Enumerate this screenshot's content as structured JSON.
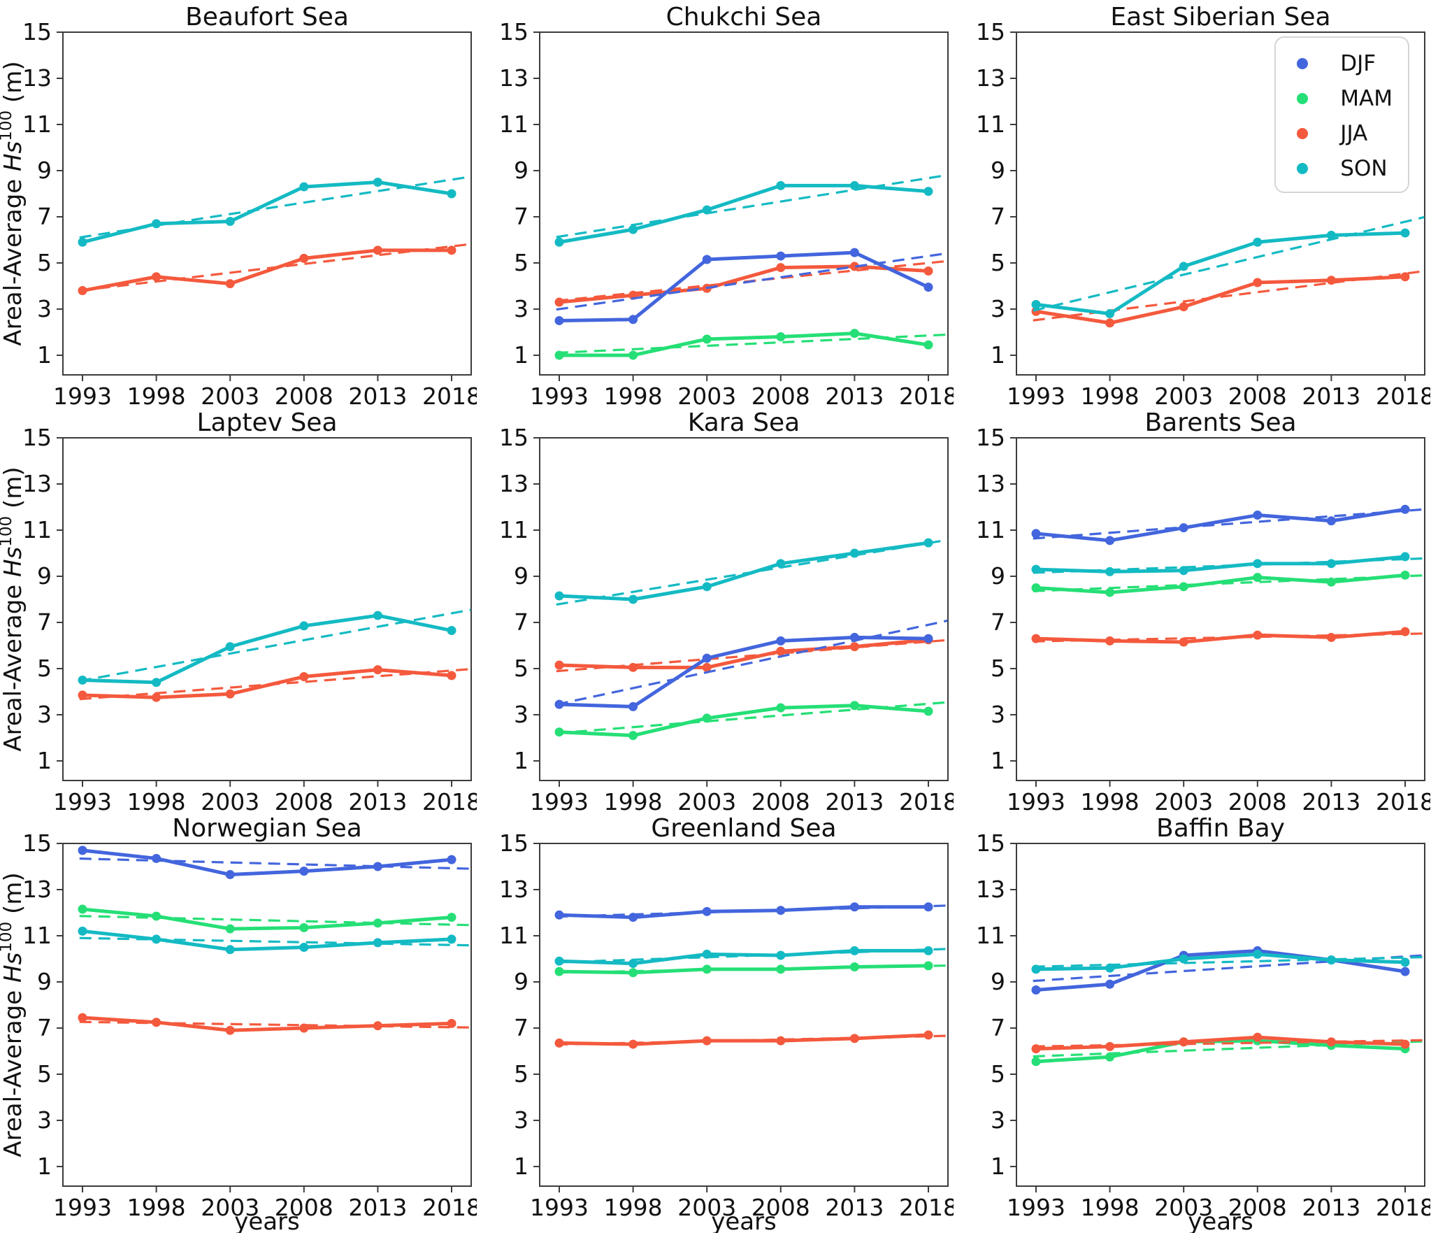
{
  "figure": {
    "ylabel": {
      "prefix": "Areal-Average ",
      "var": "Hs",
      "sup": "100",
      "suffix": " (m)"
    },
    "xlabel": "years"
  },
  "colors": {
    "DJF": "#4365dd",
    "MAM": "#25df76",
    "JJA": "#f4593d",
    "SON": "#14bac3",
    "axis": "#3c3c3c",
    "text": "#111111",
    "legend_border": "#d5d5d5"
  },
  "legend": {
    "position": "top-right of East Siberian Sea panel",
    "items": [
      {
        "key": "DJF",
        "label": "DJF"
      },
      {
        "key": "MAM",
        "label": "MAM"
      },
      {
        "key": "JJA",
        "label": "JJA"
      },
      {
        "key": "SON",
        "label": "SON"
      }
    ]
  },
  "axes": {
    "x_ticks": [
      1993,
      1998,
      2003,
      2008,
      2013,
      2018
    ],
    "y_ticks": [
      1,
      3,
      5,
      7,
      9,
      11,
      13,
      15
    ],
    "xlim": [
      1991.6,
      2019.4
    ],
    "ylim": [
      0.15,
      15
    ],
    "grid": false,
    "trend_style": "dashed straight line = linear fit of the six points, drawn 1993-2019"
  },
  "chart_data": [
    {
      "type": "line",
      "title": "Beaufort Sea",
      "x": [
        1993,
        1998,
        2003,
        2008,
        2013,
        2018
      ],
      "series": [
        {
          "name": "JJA",
          "values": [
            3.8,
            4.4,
            4.1,
            5.2,
            5.55,
            5.55
          ]
        },
        {
          "name": "SON",
          "values": [
            5.9,
            6.7,
            6.8,
            8.3,
            8.5,
            8.0
          ]
        }
      ]
    },
    {
      "type": "line",
      "title": "Chukchi Sea",
      "x": [
        1993,
        1998,
        2003,
        2008,
        2013,
        2018
      ],
      "series": [
        {
          "name": "MAM",
          "values": [
            1.0,
            1.0,
            1.7,
            1.8,
            1.95,
            1.45
          ]
        },
        {
          "name": "JJA",
          "values": [
            3.3,
            3.6,
            3.9,
            4.8,
            4.85,
            4.65
          ]
        },
        {
          "name": "DJF",
          "values": [
            2.5,
            2.55,
            5.15,
            5.3,
            5.45,
            3.95
          ]
        },
        {
          "name": "SON",
          "values": [
            5.9,
            6.45,
            7.3,
            8.35,
            8.35,
            8.1
          ]
        }
      ]
    },
    {
      "type": "line",
      "title": "East Siberian Sea",
      "x": [
        1993,
        1998,
        2003,
        2008,
        2013,
        2018
      ],
      "series": [
        {
          "name": "JJA",
          "values": [
            2.9,
            2.4,
            3.1,
            4.15,
            4.25,
            4.4
          ]
        },
        {
          "name": "SON",
          "values": [
            3.2,
            2.8,
            4.85,
            5.9,
            6.2,
            6.3
          ]
        }
      ]
    },
    {
      "type": "line",
      "title": "Laptev Sea",
      "x": [
        1993,
        1998,
        2003,
        2008,
        2013,
        2018
      ],
      "series": [
        {
          "name": "JJA",
          "values": [
            3.85,
            3.75,
            3.9,
            4.65,
            4.95,
            4.7
          ]
        },
        {
          "name": "SON",
          "values": [
            4.5,
            4.4,
            5.95,
            6.85,
            7.3,
            6.65
          ]
        }
      ]
    },
    {
      "type": "line",
      "title": "Kara Sea",
      "x": [
        1993,
        1998,
        2003,
        2008,
        2013,
        2018
      ],
      "series": [
        {
          "name": "MAM",
          "values": [
            2.25,
            2.1,
            2.85,
            3.3,
            3.4,
            3.15
          ]
        },
        {
          "name": "JJA",
          "values": [
            5.15,
            5.05,
            5.05,
            5.75,
            5.95,
            6.25
          ]
        },
        {
          "name": "DJF",
          "values": [
            3.45,
            3.35,
            5.45,
            6.2,
            6.35,
            6.3
          ]
        },
        {
          "name": "SON",
          "values": [
            8.15,
            8.0,
            8.55,
            9.55,
            10.0,
            10.45
          ]
        }
      ]
    },
    {
      "type": "line",
      "title": "Barents Sea",
      "x": [
        1993,
        1998,
        2003,
        2008,
        2013,
        2018
      ],
      "series": [
        {
          "name": "MAM",
          "values": [
            8.5,
            8.3,
            8.55,
            8.95,
            8.75,
            9.05
          ]
        },
        {
          "name": "JJA",
          "values": [
            6.3,
            6.2,
            6.15,
            6.45,
            6.35,
            6.6
          ]
        },
        {
          "name": "DJF",
          "values": [
            10.85,
            10.55,
            11.1,
            11.65,
            11.4,
            11.9
          ]
        },
        {
          "name": "SON",
          "values": [
            9.3,
            9.2,
            9.25,
            9.55,
            9.55,
            9.85
          ]
        }
      ]
    },
    {
      "type": "line",
      "title": "Norwegian Sea",
      "x": [
        1993,
        1998,
        2003,
        2008,
        2013,
        2018
      ],
      "series": [
        {
          "name": "MAM",
          "values": [
            12.15,
            11.85,
            11.3,
            11.35,
            11.55,
            11.8
          ]
        },
        {
          "name": "JJA",
          "values": [
            7.45,
            7.25,
            6.9,
            7.0,
            7.1,
            7.2
          ]
        },
        {
          "name": "DJF",
          "values": [
            14.7,
            14.35,
            13.65,
            13.8,
            14.0,
            14.3
          ]
        },
        {
          "name": "SON",
          "values": [
            11.2,
            10.85,
            10.4,
            10.5,
            10.7,
            10.85
          ]
        }
      ]
    },
    {
      "type": "line",
      "title": "Greenland Sea",
      "x": [
        1993,
        1998,
        2003,
        2008,
        2013,
        2018
      ],
      "series": [
        {
          "name": "MAM",
          "values": [
            9.45,
            9.4,
            9.55,
            9.55,
            9.65,
            9.7
          ]
        },
        {
          "name": "JJA",
          "values": [
            6.35,
            6.3,
            6.45,
            6.45,
            6.55,
            6.7
          ]
        },
        {
          "name": "DJF",
          "values": [
            11.9,
            11.8,
            12.05,
            12.1,
            12.25,
            12.25
          ]
        },
        {
          "name": "SON",
          "values": [
            9.9,
            9.8,
            10.2,
            10.15,
            10.35,
            10.35
          ]
        }
      ]
    },
    {
      "type": "line",
      "title": "Baffin Bay",
      "x": [
        1993,
        1998,
        2003,
        2008,
        2013,
        2018
      ],
      "series": [
        {
          "name": "MAM",
          "values": [
            5.55,
            5.75,
            6.4,
            6.45,
            6.25,
            6.1
          ]
        },
        {
          "name": "JJA",
          "values": [
            6.1,
            6.2,
            6.4,
            6.6,
            6.4,
            6.3
          ]
        },
        {
          "name": "DJF",
          "values": [
            8.65,
            8.9,
            10.15,
            10.35,
            9.95,
            9.45
          ]
        },
        {
          "name": "SON",
          "values": [
            9.55,
            9.6,
            10.0,
            10.2,
            9.95,
            9.85
          ]
        }
      ]
    }
  ]
}
